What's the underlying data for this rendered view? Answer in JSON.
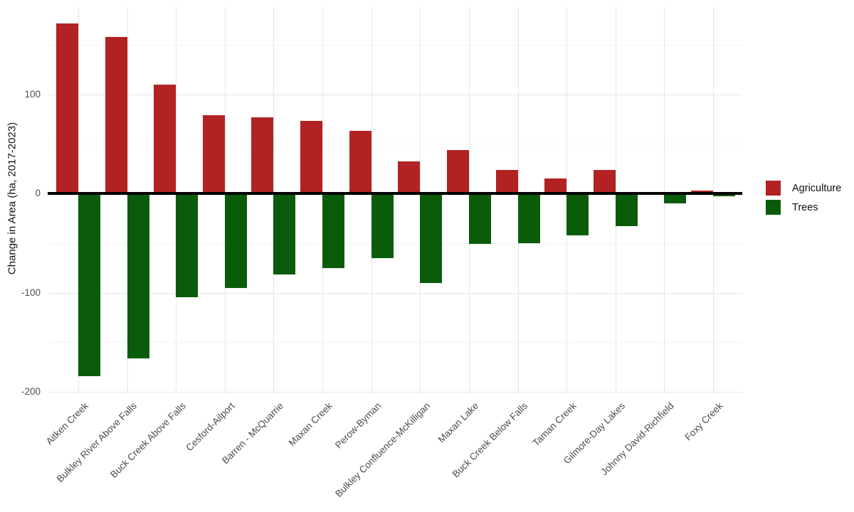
{
  "chart_data": {
    "type": "bar",
    "orientation": "vertical-diverging",
    "title": "",
    "xlabel": "",
    "ylabel": "Change in Area (ha, 2017-2023)",
    "ylim": [
      -202,
      189
    ],
    "grid": true,
    "legend_position": "right",
    "background_color": "#FFFFFF",
    "zero_line_color": "#000000",
    "tick_label_color": "#4D4D4D",
    "grid_major_color": "#E6E6E6",
    "grid_minor_color": "#F2F2F2",
    "categories": [
      "Aitken Creek",
      "Bulkley River Above Falls",
      "Buck Creek Above Falls",
      "Cesford-Ailport",
      "Barren - McQuarrie",
      "Maxan Creek",
      "Perow-Byman",
      "Bulkley Confluence-McKilligan",
      "Maxan Lake",
      "Buck Creek Below Falls",
      "Taman Creek",
      "Gilmore-Day Lakes",
      "Johnny David-Richfield",
      "Foxy Creek"
    ],
    "series": [
      {
        "name": "Agriculture",
        "color": "#B22222",
        "values": [
          171,
          158,
          110,
          79,
          77,
          73,
          63,
          32,
          44,
          24,
          15,
          24,
          0.5,
          3
        ]
      },
      {
        "name": "Trees",
        "color": "#0A5C0A",
        "values": [
          -184,
          -166,
          -105,
          -95,
          -82,
          -75,
          -65,
          -90,
          -51,
          -50,
          -42,
          -33,
          -10,
          -3
        ]
      }
    ],
    "y_major_ticks": [
      {
        "value": 100,
        "label": "100"
      },
      {
        "value": 0,
        "label": "0"
      },
      {
        "value": -100,
        "label": "-100"
      },
      {
        "value": -200,
        "label": "-200"
      }
    ],
    "y_minor_ticks": [
      150,
      50,
      -50,
      -150
    ]
  }
}
